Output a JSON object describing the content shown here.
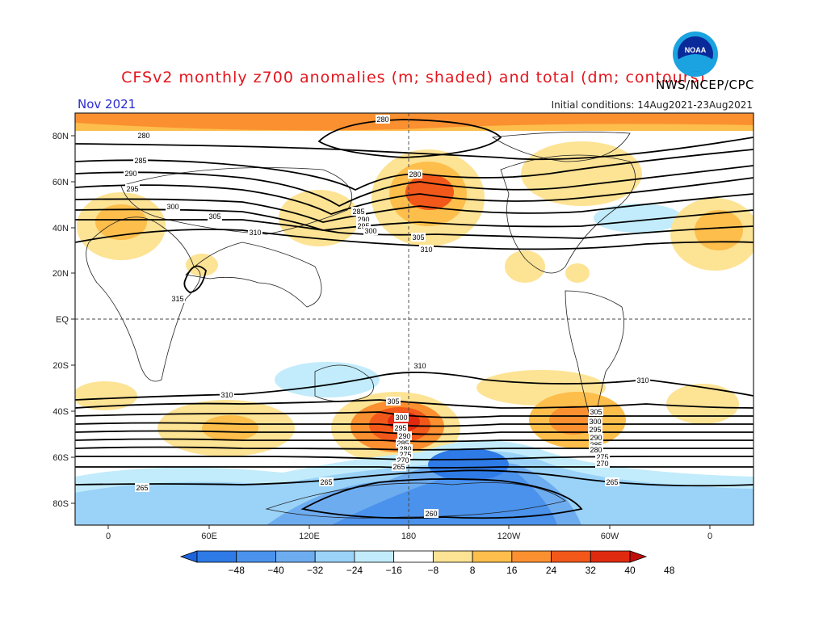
{
  "header": {
    "title": "CFSv2 monthly z700 anomalies (m; shaded) and total (dm; contours)",
    "organization": "NWS/NCEP/CPC",
    "month": "Nov 2021",
    "initial_conditions": "Initial conditions: 14Aug2021-23Aug2021",
    "logo_text": "NOAA"
  },
  "axes": {
    "lat_labels": [
      "80N",
      "60N",
      "40N",
      "20N",
      "EQ",
      "20S",
      "40S",
      "60S",
      "80S"
    ],
    "lon_labels": [
      "0",
      "60E",
      "120E",
      "180",
      "120W",
      "60W",
      "0"
    ]
  },
  "colorbar": {
    "ticks": [
      "−48",
      "−40",
      "−32",
      "−24",
      "−16",
      "−8",
      "8",
      "16",
      "24",
      "32",
      "40",
      "48"
    ],
    "colors": [
      "#1e64dc",
      "#2e7ae6",
      "#4a92ec",
      "#6eacf0",
      "#9ad2f8",
      "#c2ecfc",
      "#ffffff",
      "#fde394",
      "#fdbe4c",
      "#fb9030",
      "#f2581a",
      "#e02a10",
      "#c00e0a"
    ]
  },
  "contour_labels": [
    "280",
    "285",
    "290",
    "295",
    "300",
    "305",
    "310",
    "315",
    "280",
    "280",
    "285",
    "290",
    "295",
    "300",
    "305",
    "310",
    "310",
    "310",
    "305",
    "300",
    "295",
    "290",
    "285",
    "280",
    "275",
    "270",
    "265",
    "260",
    "265",
    "310",
    "305",
    "300",
    "295",
    "290",
    "285",
    "280",
    "275",
    "270",
    "265",
    "265"
  ]
}
